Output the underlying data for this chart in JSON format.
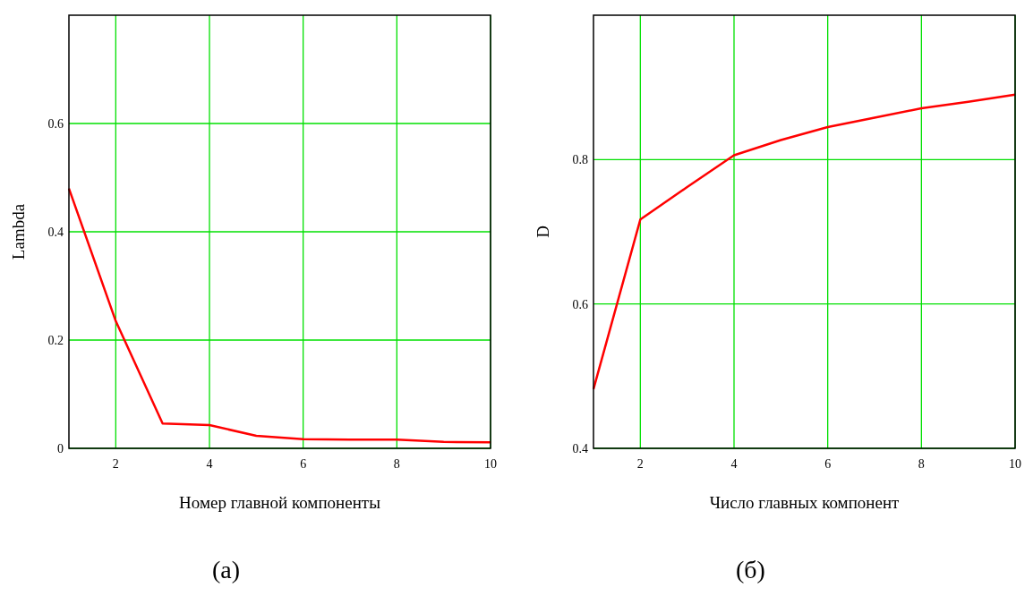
{
  "chart_data": [
    {
      "type": "line",
      "xlabel": "Номер главной компоненты",
      "ylabel": "Lambda",
      "annotations": [
        "(а)"
      ],
      "x": [
        1,
        2,
        3,
        4,
        5,
        6,
        7,
        8,
        9,
        10
      ],
      "series": [
        {
          "color": "#ff0000",
          "values": [
            0.48,
            0.235,
            0.046,
            0.043,
            0.023,
            0.017,
            0.016,
            0.016,
            0.012,
            0.011
          ]
        }
      ],
      "xlim": [
        1,
        10
      ],
      "xticks": [
        2,
        4,
        6,
        8,
        10
      ],
      "ylim": [
        0,
        0.8
      ],
      "yticks": [
        0,
        0.2,
        0.4,
        0.6
      ],
      "grid": true,
      "marker": "none",
      "line_style": "solid"
    },
    {
      "type": "line",
      "xlabel": "Число главных компонент",
      "ylabel": "D",
      "annotations": [
        "(б)"
      ],
      "x": [
        1,
        2,
        3,
        4,
        5,
        6,
        7,
        8,
        9,
        10
      ],
      "series": [
        {
          "color": "#ff0000",
          "values": [
            0.482,
            0.717,
            0.762,
            0.806,
            0.827,
            0.845,
            0.858,
            0.871,
            0.88,
            0.89
          ]
        }
      ],
      "xlim": [
        1,
        10
      ],
      "xticks": [
        2,
        4,
        6,
        8,
        10
      ],
      "ylim": [
        0.4,
        1.0
      ],
      "yticks": [
        0.4,
        0.6,
        0.8
      ],
      "grid": true,
      "marker": "none",
      "line_style": "solid"
    }
  ]
}
